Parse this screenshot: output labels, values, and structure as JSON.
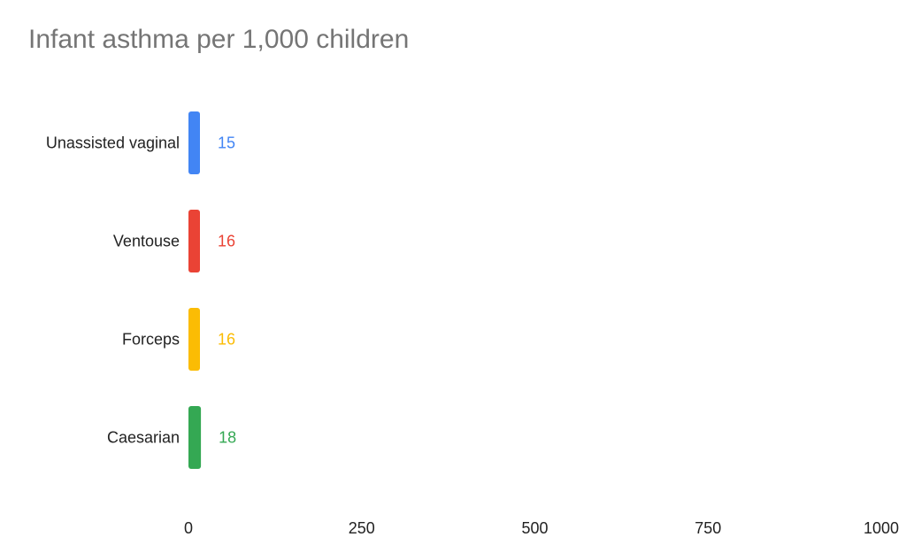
{
  "chart_data": {
    "type": "bar",
    "orientation": "horizontal",
    "title": "Infant asthma per 1,000 children",
    "categories": [
      "Unassisted vaginal",
      "Ventouse",
      "Forceps",
      "Caesarian"
    ],
    "values": [
      15,
      16,
      16,
      18
    ],
    "data_labels": [
      "15",
      "16",
      "16",
      "18"
    ],
    "colors": [
      "#4285F4",
      "#EA4335",
      "#FBBC04",
      "#34A853"
    ],
    "xlim": [
      0,
      1000
    ],
    "x_ticks": [
      0,
      250,
      500,
      750,
      1000
    ],
    "x_tick_labels": [
      "0",
      "250",
      "500",
      "750",
      "1000"
    ],
    "xlabel": "",
    "ylabel": "",
    "grid": false,
    "legend": "none"
  }
}
